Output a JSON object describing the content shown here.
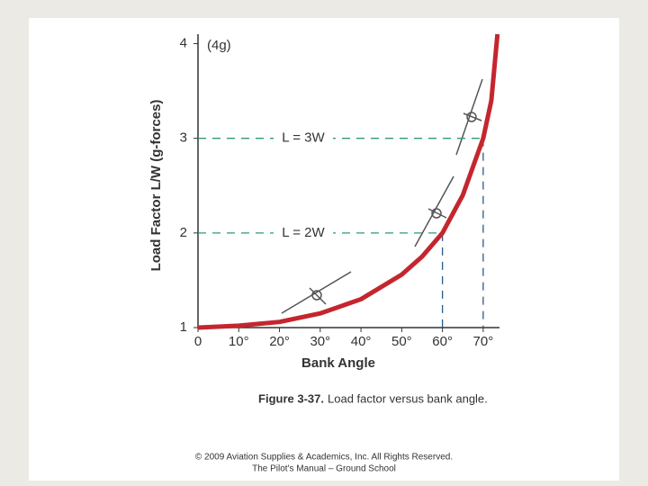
{
  "chart_data": {
    "type": "line",
    "x": [
      0,
      10,
      20,
      30,
      40,
      50,
      55,
      60,
      65,
      70,
      72,
      73.5
    ],
    "values": [
      1,
      1.02,
      1.06,
      1.15,
      1.3,
      1.56,
      1.75,
      2.0,
      2.4,
      3.0,
      3.4,
      4.1
    ],
    "color": "#c4262e",
    "xlabel": "Bank Angle",
    "ylabel": "Load Factor  L/W  (g-forces)",
    "xlim": [
      0,
      74
    ],
    "ylim": [
      1,
      4.1
    ],
    "xticks": [
      0,
      {
        "value": 10,
        "label": "10°"
      },
      {
        "value": 20,
        "label": "20°"
      },
      {
        "value": 30,
        "label": "30°"
      },
      {
        "value": 40,
        "label": "40°"
      },
      {
        "value": 50,
        "label": "50°"
      },
      {
        "value": 60,
        "label": "60°"
      },
      {
        "value": 70,
        "label": "70°"
      }
    ],
    "yticks": [
      1,
      2,
      3,
      4
    ],
    "annotation": "(4g)",
    "reference_lines": [
      {
        "x": 60,
        "y": 2,
        "label": "L = 2W"
      },
      {
        "x": 70,
        "y": 3,
        "label": "L = 3W"
      }
    ],
    "reference_color": "#2e9a78"
  },
  "caption": {
    "label": "Figure 3-37.",
    "text": "Load factor versus bank angle."
  },
  "footer": [
    "© 2009 Aviation Supplies & Academics, Inc. All Rights Reserved.",
    "The Pilot's Manual – Ground School"
  ]
}
